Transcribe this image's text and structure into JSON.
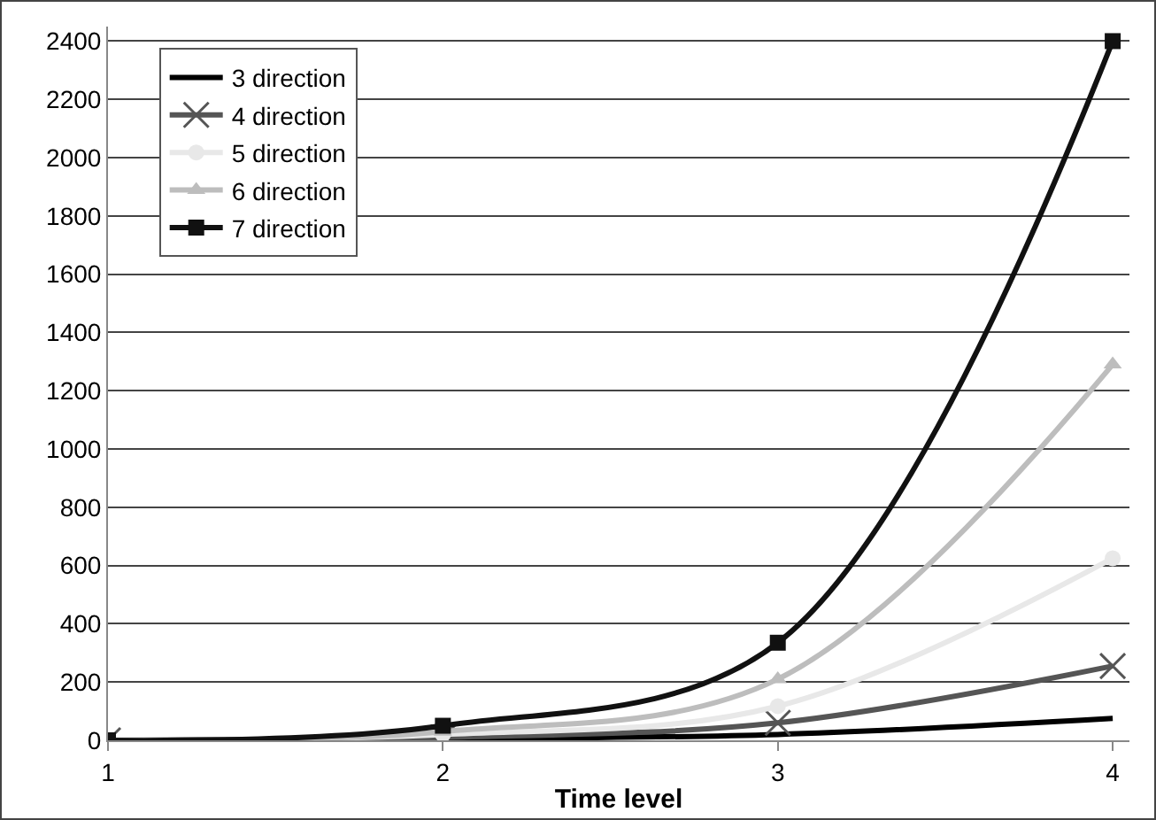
{
  "chart_data": {
    "type": "line",
    "xlabel": "Time level",
    "x": [
      1,
      2,
      3,
      4
    ],
    "xlim": [
      1,
      4.05
    ],
    "xticks": [
      1,
      2,
      3,
      4
    ],
    "ylim": [
      0,
      2450
    ],
    "yticks": [
      0,
      200,
      400,
      600,
      800,
      1000,
      1200,
      1400,
      1600,
      1800,
      2000,
      2200,
      2400
    ],
    "grid": "y",
    "legend": "top left",
    "series": [
      {
        "name": "3 direction",
        "color": "#000000",
        "marker": "none",
        "values": [
          0,
          5,
          20,
          75
        ]
      },
      {
        "name": "4 direction",
        "color": "#555555",
        "marker": "cross",
        "values": [
          0,
          10,
          60,
          255
        ]
      },
      {
        "name": "5 direction",
        "color": "#e8e8e8",
        "marker": "circle",
        "values": [
          0,
          20,
          117,
          625
        ]
      },
      {
        "name": "6 direction",
        "color": "#bdbdbd",
        "marker": "triangle",
        "values": [
          0,
          30,
          210,
          1290
        ]
      },
      {
        "name": "7 direction",
        "color": "#111111",
        "marker": "square",
        "values": [
          0,
          50,
          335,
          2400
        ]
      }
    ]
  }
}
